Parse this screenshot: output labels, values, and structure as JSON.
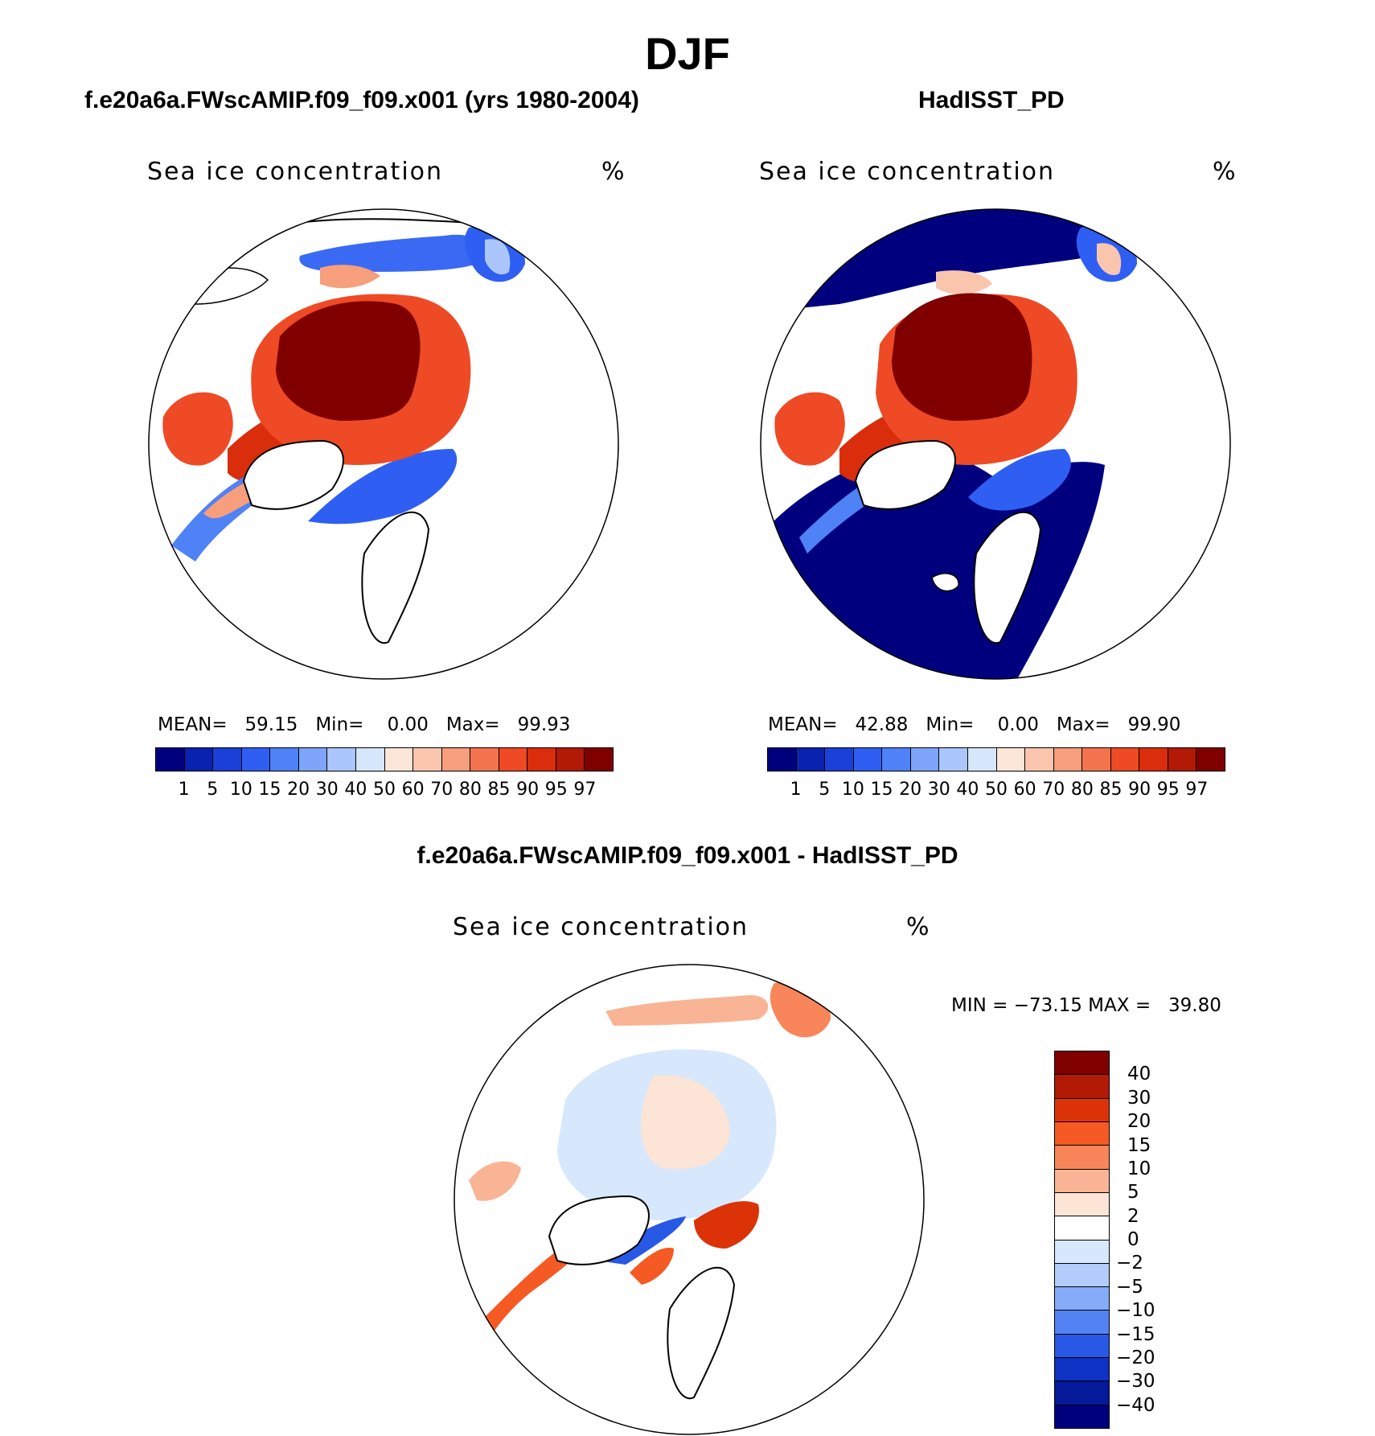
{
  "title": "DJF",
  "panels": [
    {
      "title": "f.e20a6a.FWscAMIP.f09_f09.x001 (yrs 1980-2004)",
      "subtitle": "Sea ice concentration",
      "units": "%",
      "stats": {
        "mean_label": "MEAN=",
        "mean": "59.15",
        "min_label": "Min=",
        "min": "0.00",
        "max_label": "Max=",
        "max": "99.93"
      }
    },
    {
      "title": "HadISST_PD",
      "subtitle": "Sea ice concentration",
      "units": "%",
      "stats": {
        "mean_label": "MEAN=",
        "mean": "42.88",
        "min_label": "Min=",
        "min": "0.00",
        "max_label": "Max=",
        "max": "99.90"
      }
    },
    {
      "title": "f.e20a6a.FWscAMIP.f09_f09.x001 - HadISST_PD",
      "subtitle": "Sea ice concentration",
      "units": "%",
      "stats": {
        "min_label": "MIN =",
        "min": "−73.15",
        "max_label": "MAX =",
        "max": "39.80"
      }
    }
  ],
  "chart_data": [
    {
      "type": "heatmap",
      "projection": "north polar stereographic",
      "variable": "Sea ice concentration",
      "units": "%",
      "colorbar": {
        "levels": [
          "1",
          "5",
          "10",
          "15",
          "20",
          "30",
          "40",
          "50",
          "60",
          "70",
          "80",
          "85",
          "90",
          "95",
          "97"
        ],
        "colors": [
          "#00007f",
          "#0a22b0",
          "#1a40d8",
          "#2e5ff2",
          "#4f81f7",
          "#7ea5fa",
          "#abc6fb",
          "#d6e7fc",
          "#fbe6d8",
          "#f9c6ad",
          "#f79e7c",
          "#f4734f",
          "#ee4a25",
          "#d92d0b",
          "#b21a05",
          "#800000"
        ]
      },
      "mean": 59.15,
      "min": 0.0,
      "max": 99.93
    },
    {
      "type": "heatmap",
      "projection": "north polar stereographic",
      "variable": "Sea ice concentration",
      "units": "%",
      "colorbar": {
        "levels": [
          "1",
          "5",
          "10",
          "15",
          "20",
          "30",
          "40",
          "50",
          "60",
          "70",
          "80",
          "85",
          "90",
          "95",
          "97"
        ],
        "colors": [
          "#00007f",
          "#0a22b0",
          "#1a40d8",
          "#2e5ff2",
          "#4f81f7",
          "#7ea5fa",
          "#abc6fb",
          "#d6e7fc",
          "#fbe6d8",
          "#f9c6ad",
          "#f79e7c",
          "#f4734f",
          "#ee4a25",
          "#d92d0b",
          "#b21a05",
          "#800000"
        ]
      },
      "mean": 42.88,
      "min": 0.0,
      "max": 99.9
    },
    {
      "type": "heatmap",
      "projection": "north polar stereographic",
      "variable": "Sea ice concentration difference",
      "units": "%",
      "colorbar": {
        "levels": [
          "40",
          "30",
          "20",
          "15",
          "10",
          "5",
          "2",
          "0",
          "−2",
          "−5",
          "−10",
          "−15",
          "−20",
          "−30",
          "−40"
        ],
        "colors": [
          "#800000",
          "#b21a05",
          "#dc3208",
          "#f55a24",
          "#f8865a",
          "#f9b495",
          "#fce4d6",
          "#ffffff",
          "#d7e8fc",
          "#b2cdfb",
          "#86abf8",
          "#5382f5",
          "#2858e6",
          "#0e32c4",
          "#041a9a",
          "#00007f"
        ]
      },
      "min": -73.15,
      "max": 39.8
    }
  ]
}
